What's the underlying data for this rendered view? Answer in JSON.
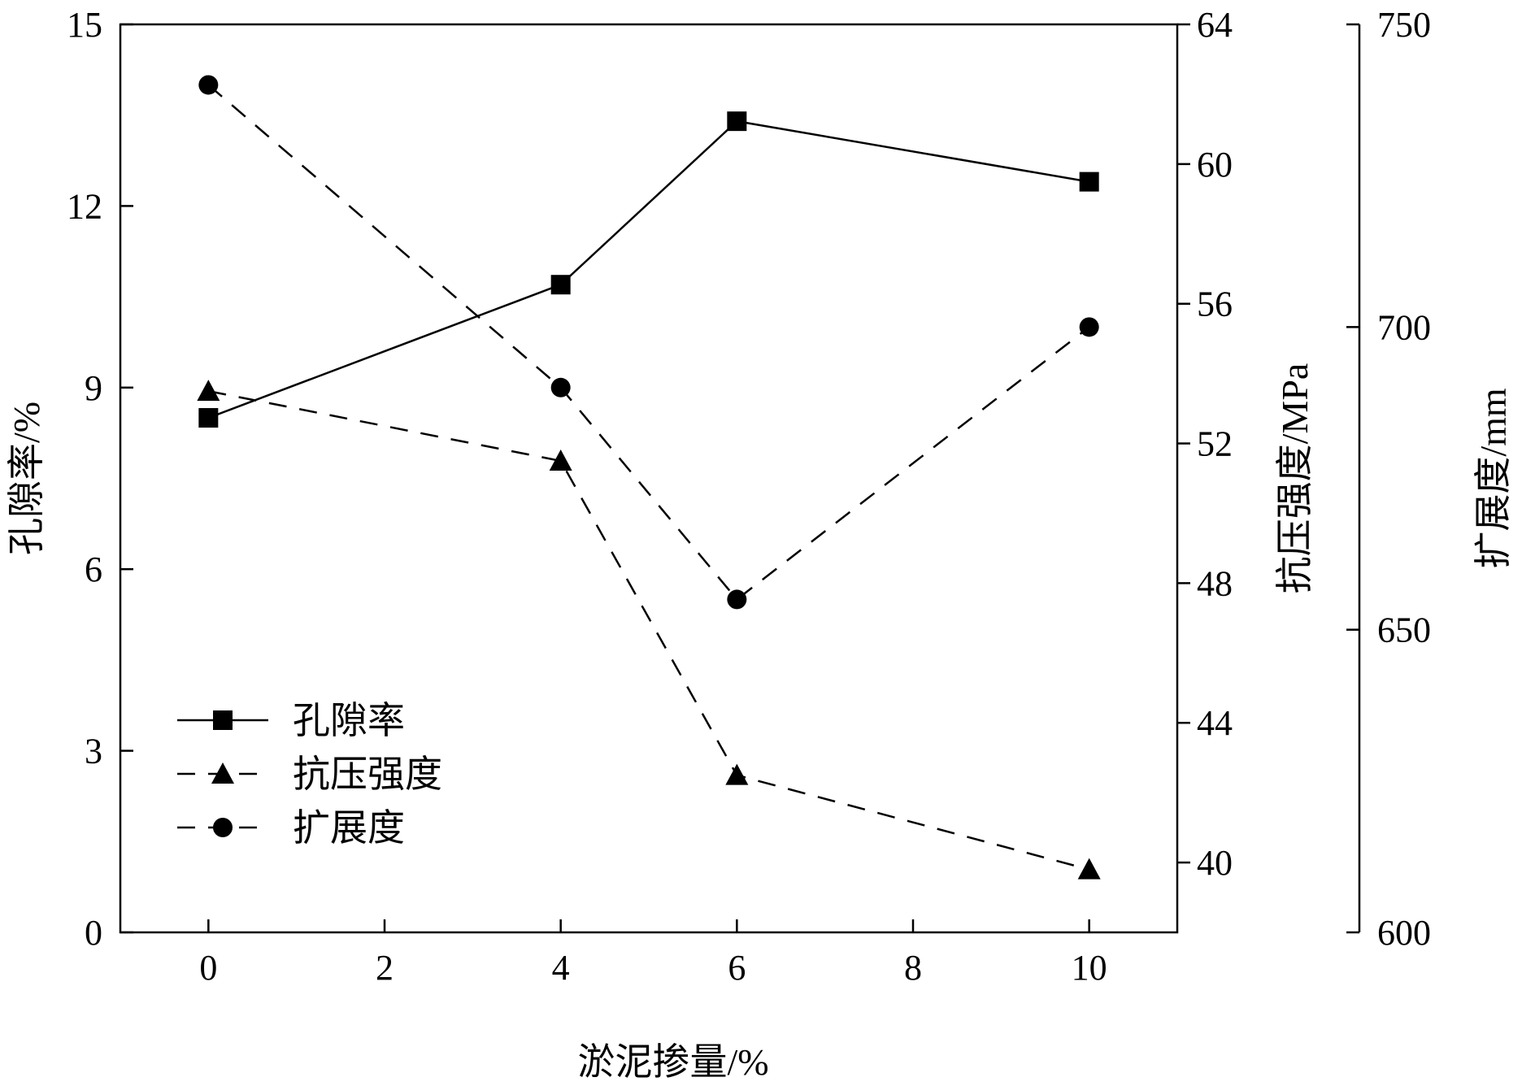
{
  "chart_data": {
    "type": "line",
    "x": [
      0,
      4,
      6,
      10
    ],
    "xlabel": "淤泥掺量/%",
    "xlim": [
      -1,
      11
    ],
    "xticks": [
      "0",
      "2",
      "4",
      "6",
      "8",
      "10"
    ],
    "axes": {
      "left": {
        "label": "孔隙率/%",
        "lim": [
          0,
          15
        ],
        "ticks": [
          "0",
          "3",
          "6",
          "9",
          "12",
          "15"
        ]
      },
      "right1": {
        "label": "抗压强度/MPa",
        "lim": [
          38,
          64
        ],
        "ticks": [
          "40",
          "44",
          "48",
          "52",
          "56",
          "60",
          "64"
        ]
      },
      "right2": {
        "label": "扩展度/mm",
        "lim": [
          600,
          750
        ],
        "ticks": [
          "600",
          "650",
          "700",
          "750"
        ]
      }
    },
    "series": [
      {
        "name": "孔隙率",
        "axis": "left",
        "marker": "square",
        "line": "solid",
        "values": [
          8.5,
          10.7,
          13.4,
          12.4
        ]
      },
      {
        "name": "抗压强度",
        "axis": "right1",
        "marker": "triangle",
        "line": "dashed",
        "values": [
          53.5,
          51.5,
          42.5,
          39.8
        ]
      },
      {
        "name": "扩展度",
        "axis": "right2",
        "marker": "circle",
        "line": "dashed",
        "values": [
          740,
          690,
          655,
          700
        ]
      }
    ],
    "legend": "lower-left",
    "grid": false,
    "colors": {
      "ink": "#000000",
      "background": "#ffffff"
    }
  }
}
